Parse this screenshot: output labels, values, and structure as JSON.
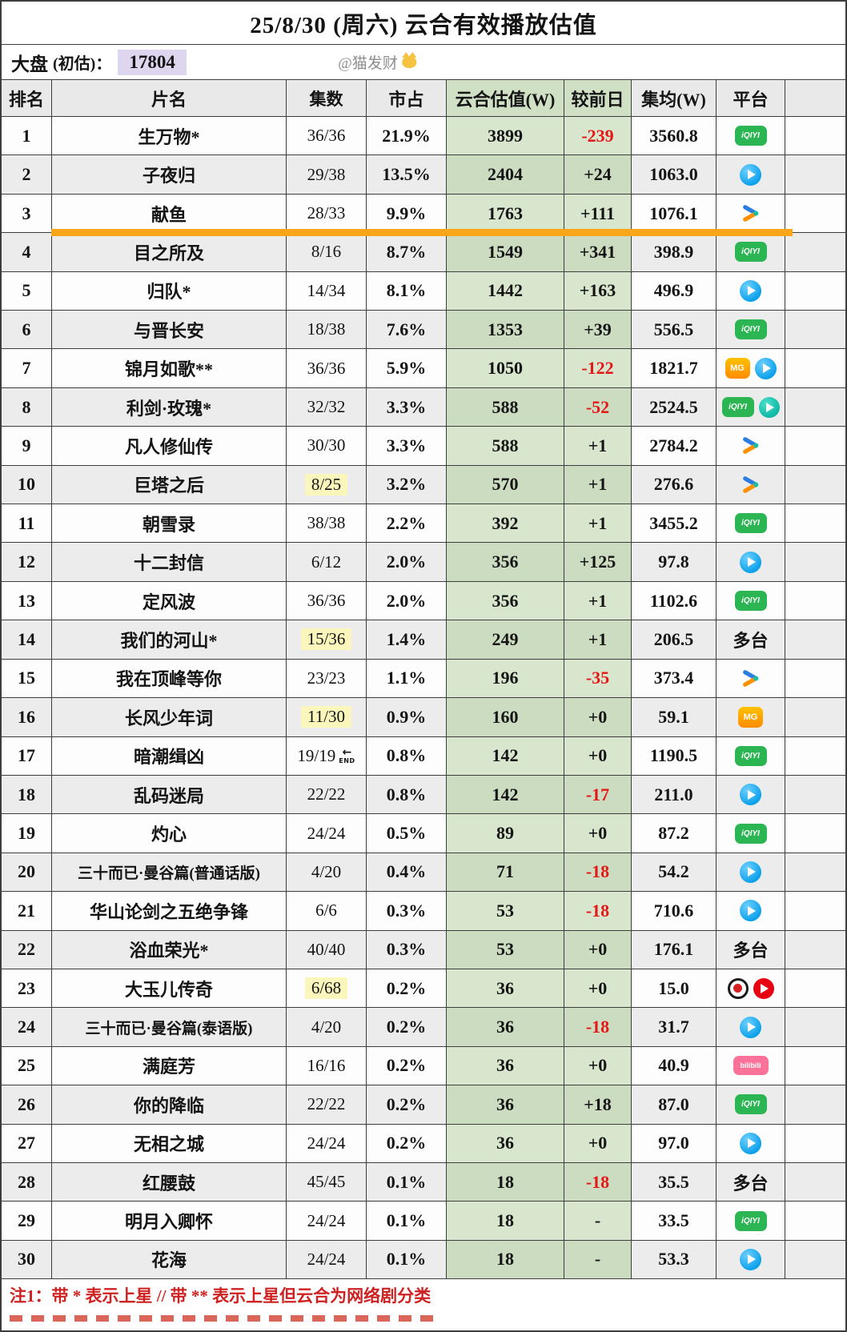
{
  "title": "25/8/30 (周六) 云合有效播放估值",
  "info": {
    "market_label": "大盘",
    "market_sub": "(初估)：",
    "market_value": "17804",
    "handle": "@猫发财",
    "handle_icon": "cat-face"
  },
  "table": {
    "columns": [
      "排名",
      "片名",
      "集数",
      "市占",
      "云合估值(W)",
      "较前日",
      "集均(W)",
      "平台"
    ],
    "rows": [
      {
        "rank": "1",
        "title": "生万物*",
        "eps": "36/36",
        "share": "21.9%",
        "est": "3899",
        "delta": "-239",
        "delta_red": true,
        "avg": "3560.8",
        "platforms": [
          "iqiyi"
        ]
      },
      {
        "rank": "2",
        "title": "子夜归",
        "eps": "29/38",
        "share": "13.5%",
        "est": "2404",
        "delta": "+24",
        "avg": "1063.0",
        "platforms": [
          "youku"
        ]
      },
      {
        "rank": "3",
        "title": "献鱼",
        "eps": "28/33",
        "share": "9.9%",
        "est": "1763",
        "delta": "+111",
        "avg": "1076.1",
        "platforms": [
          "tencent"
        ],
        "highlight_bar": true
      },
      {
        "rank": "4",
        "title": "目之所及",
        "eps": "8/16",
        "share": "8.7%",
        "est": "1549",
        "delta": "+341",
        "avg": "398.9",
        "platforms": [
          "iqiyi"
        ]
      },
      {
        "rank": "5",
        "title": "归队*",
        "eps": "14/34",
        "share": "8.1%",
        "est": "1442",
        "delta": "+163",
        "avg": "496.9",
        "platforms": [
          "youku"
        ]
      },
      {
        "rank": "6",
        "title": "与晋长安",
        "eps": "18/38",
        "share": "7.6%",
        "est": "1353",
        "delta": "+39",
        "avg": "556.5",
        "platforms": [
          "iqiyi"
        ]
      },
      {
        "rank": "7",
        "title": "锦月如歌**",
        "eps": "36/36",
        "share": "5.9%",
        "est": "1050",
        "delta": "-122",
        "delta_red": true,
        "avg": "1821.7",
        "platforms": [
          "mgtv",
          "youku"
        ]
      },
      {
        "rank": "8",
        "title": "利剑·玫瑰*",
        "eps": "32/32",
        "share": "3.3%",
        "est": "588",
        "delta": "-52",
        "delta_red": true,
        "avg": "2524.5",
        "platforms": [
          "iqiyi",
          "tencent-circle"
        ]
      },
      {
        "rank": "9",
        "title": "凡人修仙传",
        "eps": "30/30",
        "share": "3.3%",
        "est": "588",
        "delta": "+1",
        "avg": "2784.2",
        "platforms": [
          "tencent"
        ]
      },
      {
        "rank": "10",
        "title": "巨塔之后",
        "eps": "8/25",
        "eps_hl": true,
        "share": "3.2%",
        "est": "570",
        "delta": "+1",
        "avg": "276.6",
        "platforms": [
          "tencent"
        ]
      },
      {
        "rank": "11",
        "title": "朝雪录",
        "eps": "38/38",
        "share": "2.2%",
        "est": "392",
        "delta": "+1",
        "avg": "3455.2",
        "platforms": [
          "iqiyi"
        ]
      },
      {
        "rank": "12",
        "title": "十二封信",
        "eps": "6/12",
        "share": "2.0%",
        "est": "356",
        "delta": "+125",
        "avg": "97.8",
        "platforms": [
          "youku"
        ]
      },
      {
        "rank": "13",
        "title": "定风波",
        "eps": "36/36",
        "share": "2.0%",
        "est": "356",
        "delta": "+1",
        "avg": "1102.6",
        "platforms": [
          "iqiyi"
        ]
      },
      {
        "rank": "14",
        "title": "我们的河山*",
        "eps": "15/36",
        "eps_hl": true,
        "share": "1.4%",
        "est": "249",
        "delta": "+1",
        "avg": "206.5",
        "platforms": [
          "multi"
        ]
      },
      {
        "rank": "15",
        "title": "我在顶峰等你",
        "eps": "23/23",
        "share": "1.1%",
        "est": "196",
        "delta": "-35",
        "delta_red": true,
        "avg": "373.4",
        "platforms": [
          "tencent"
        ]
      },
      {
        "rank": "16",
        "title": "长风少年词",
        "eps": "11/30",
        "eps_hl": true,
        "share": "0.9%",
        "est": "160",
        "delta": "+0",
        "avg": "59.1",
        "platforms": [
          "mgtv"
        ]
      },
      {
        "rank": "17",
        "title": "暗潮缉凶",
        "eps": "19/19",
        "eps_end": true,
        "share": "0.8%",
        "est": "142",
        "delta": "+0",
        "avg": "1190.5",
        "platforms": [
          "iqiyi"
        ]
      },
      {
        "rank": "18",
        "title": "乱码迷局",
        "eps": "22/22",
        "share": "0.8%",
        "est": "142",
        "delta": "-17",
        "delta_red": true,
        "avg": "211.0",
        "platforms": [
          "youku"
        ]
      },
      {
        "rank": "19",
        "title": "灼心",
        "eps": "24/24",
        "share": "0.5%",
        "est": "89",
        "delta": "+0",
        "avg": "87.2",
        "platforms": [
          "iqiyi"
        ]
      },
      {
        "rank": "20",
        "title": "三十而已·曼谷篇(普通话版)",
        "eps": "4/20",
        "share": "0.4%",
        "est": "71",
        "delta": "-18",
        "delta_red": true,
        "avg": "54.2",
        "platforms": [
          "youku"
        ]
      },
      {
        "rank": "21",
        "title": "华山论剑之五绝争锋",
        "eps": "6/6",
        "share": "0.3%",
        "est": "53",
        "delta": "-18",
        "delta_red": true,
        "avg": "710.6",
        "platforms": [
          "youku"
        ]
      },
      {
        "rank": "22",
        "title": "浴血荣光*",
        "eps": "40/40",
        "share": "0.3%",
        "est": "53",
        "delta": "+0",
        "avg": "176.1",
        "platforms": [
          "multi"
        ]
      },
      {
        "rank": "23",
        "title": "大玉儿传奇",
        "eps": "6/68",
        "eps_hl": true,
        "share": "0.2%",
        "est": "36",
        "delta": "+0",
        "avg": "15.0",
        "platforms": [
          "red-ring",
          "red-play"
        ]
      },
      {
        "rank": "24",
        "title": "三十而已·曼谷篇(泰语版)",
        "eps": "4/20",
        "share": "0.2%",
        "est": "36",
        "delta": "-18",
        "delta_red": true,
        "avg": "31.7",
        "platforms": [
          "youku"
        ]
      },
      {
        "rank": "25",
        "title": "满庭芳",
        "eps": "16/16",
        "share": "0.2%",
        "est": "36",
        "delta": "+0",
        "avg": "40.9",
        "platforms": [
          "bilibili"
        ]
      },
      {
        "rank": "26",
        "title": "你的降临",
        "eps": "22/22",
        "share": "0.2%",
        "est": "36",
        "delta": "+18",
        "avg": "87.0",
        "platforms": [
          "iqiyi"
        ]
      },
      {
        "rank": "27",
        "title": "无相之城",
        "eps": "24/24",
        "share": "0.2%",
        "est": "36",
        "delta": "+0",
        "avg": "97.0",
        "platforms": [
          "youku"
        ]
      },
      {
        "rank": "28",
        "title": "红腰鼓",
        "eps": "45/45",
        "share": "0.1%",
        "est": "18",
        "delta": "-18",
        "delta_red": true,
        "avg": "35.5",
        "platforms": [
          "multi"
        ]
      },
      {
        "rank": "29",
        "title": "明月入卿怀",
        "eps": "24/24",
        "share": "0.1%",
        "est": "18",
        "delta": "-",
        "avg": "33.5",
        "platforms": [
          "iqiyi"
        ]
      },
      {
        "rank": "30",
        "title": "花海",
        "eps": "24/24",
        "share": "0.1%",
        "est": "18",
        "delta": "-",
        "avg": "53.3",
        "platforms": [
          "youku"
        ]
      }
    ]
  },
  "platform_labels": {
    "multi": "多台",
    "iqiyi": "iQIYI",
    "bilibili": "bilibili",
    "mgtv": "MG"
  },
  "end_marker": {
    "arrow": "←",
    "label": "END"
  },
  "footer": {
    "note1": "注1：带 * 表示上星 // 带 ** 表示上星但云合为网络剧分类"
  },
  "colors": {
    "highlight_bar": "#f9a61a",
    "green_cell": "#d8e6cd",
    "market_value_bg": "#ded5ee",
    "negative_red": "#e51717",
    "header_bg": "#e9e9e9",
    "episode_highlight": "#fbf6bb",
    "footnote_red": "#cf2121"
  },
  "chart_data": {
    "type": "table",
    "title": "25/8/30 (周六) 云合有效播放估值",
    "subtitle": "大盘 (初估)：17804",
    "columns": [
      "排名",
      "片名",
      "集数",
      "市占",
      "云合估值(W)",
      "较前日",
      "集均(W)",
      "平台"
    ],
    "rows": [
      [
        "1",
        "生万物*",
        "36/36",
        "21.9%",
        3899,
        -239,
        3560.8,
        "iqiyi"
      ],
      [
        "2",
        "子夜归",
        "29/38",
        "13.5%",
        2404,
        24,
        1063.0,
        "youku"
      ],
      [
        "3",
        "献鱼",
        "28/33",
        "9.9%",
        1763,
        111,
        1076.1,
        "tencent"
      ],
      [
        "4",
        "目之所及",
        "8/16",
        "8.7%",
        1549,
        341,
        398.9,
        "iqiyi"
      ],
      [
        "5",
        "归队*",
        "14/34",
        "8.1%",
        1442,
        163,
        496.9,
        "youku"
      ],
      [
        "6",
        "与晋长安",
        "18/38",
        "7.6%",
        1353,
        39,
        556.5,
        "iqiyi"
      ],
      [
        "7",
        "锦月如歌**",
        "36/36",
        "5.9%",
        1050,
        -122,
        1821.7,
        "mgtv+youku"
      ],
      [
        "8",
        "利剑·玫瑰*",
        "32/32",
        "3.3%",
        588,
        -52,
        2524.5,
        "iqiyi+tencent"
      ],
      [
        "9",
        "凡人修仙传",
        "30/30",
        "3.3%",
        588,
        1,
        2784.2,
        "tencent"
      ],
      [
        "10",
        "巨塔之后",
        "8/25",
        "3.2%",
        570,
        1,
        276.6,
        "tencent"
      ],
      [
        "11",
        "朝雪录",
        "38/38",
        "2.2%",
        392,
        1,
        3455.2,
        "iqiyi"
      ],
      [
        "12",
        "十二封信",
        "6/12",
        "2.0%",
        356,
        125,
        97.8,
        "youku"
      ],
      [
        "13",
        "定风波",
        "36/36",
        "2.0%",
        356,
        1,
        1102.6,
        "iqiyi"
      ],
      [
        "14",
        "我们的河山*",
        "15/36",
        "1.4%",
        249,
        1,
        206.5,
        "多台"
      ],
      [
        "15",
        "我在顶峰等你",
        "23/23",
        "1.1%",
        196,
        -35,
        373.4,
        "tencent"
      ],
      [
        "16",
        "长风少年词",
        "11/30",
        "0.9%",
        160,
        0,
        59.1,
        "mgtv"
      ],
      [
        "17",
        "暗潮缉凶",
        "19/19 END",
        "0.8%",
        142,
        0,
        1190.5,
        "iqiyi"
      ],
      [
        "18",
        "乱码迷局",
        "22/22",
        "0.8%",
        142,
        -17,
        211.0,
        "youku"
      ],
      [
        "19",
        "灼心",
        "24/24",
        "0.5%",
        89,
        0,
        87.2,
        "iqiyi"
      ],
      [
        "20",
        "三十而已·曼谷篇(普通话版)",
        "4/20",
        "0.4%",
        71,
        -18,
        54.2,
        "youku"
      ],
      [
        "21",
        "华山论剑之五绝争锋",
        "6/6",
        "0.3%",
        53,
        -18,
        710.6,
        "youku"
      ],
      [
        "22",
        "浴血荣光*",
        "40/40",
        "0.3%",
        53,
        0,
        176.1,
        "多台"
      ],
      [
        "23",
        "大玉儿传奇",
        "6/68",
        "0.2%",
        36,
        0,
        15.0,
        "red-ring+red-play"
      ],
      [
        "24",
        "三十而已·曼谷篇(泰语版)",
        "4/20",
        "0.2%",
        36,
        -18,
        31.7,
        "youku"
      ],
      [
        "25",
        "满庭芳",
        "16/16",
        "0.2%",
        36,
        0,
        40.9,
        "bilibili"
      ],
      [
        "26",
        "你的降临",
        "22/22",
        "0.2%",
        36,
        18,
        87.0,
        "iqiyi"
      ],
      [
        "27",
        "无相之城",
        "24/24",
        "0.2%",
        36,
        0,
        97.0,
        "youku"
      ],
      [
        "28",
        "红腰鼓",
        "45/45",
        "0.1%",
        18,
        -18,
        35.5,
        "多台"
      ],
      [
        "29",
        "明月入卿怀",
        "24/24",
        "0.1%",
        18,
        null,
        33.5,
        "iqiyi"
      ],
      [
        "30",
        "花海",
        "24/24",
        "0.1%",
        18,
        null,
        53.3,
        "youku"
      ]
    ],
    "note": "注1：带 * 表示上星 // 带 ** 表示上星但云合为网络剧分类"
  }
}
